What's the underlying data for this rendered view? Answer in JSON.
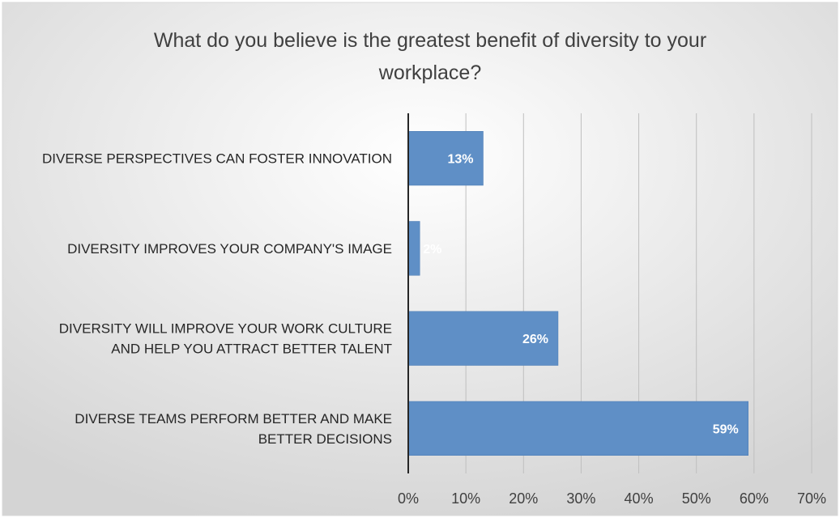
{
  "chart_data": {
    "type": "bar",
    "orientation": "horizontal",
    "title_lines": [
      "What do you believe is the greatest benefit of diversity to your",
      "workplace?"
    ],
    "categories": [
      [
        "DIVERSE PERSPECTIVES CAN FOSTER INNOVATION"
      ],
      [
        "DIVERSITY IMPROVES YOUR COMPANY'S IMAGE"
      ],
      [
        "DIVERSITY WILL IMPROVE YOUR WORK CULTURE",
        "AND HELP YOU ATTRACT BETTER TALENT"
      ],
      [
        "DIVERSE TEAMS PERFORM BETTER AND MAKE",
        "BETTER DECISIONS"
      ]
    ],
    "values": [
      13,
      2,
      26,
      59
    ],
    "value_labels": [
      "13%",
      "2%",
      "26%",
      "59%"
    ],
    "ticks": [
      0,
      10,
      20,
      30,
      40,
      50,
      60,
      70
    ],
    "tick_labels": [
      "0%",
      "10%",
      "20%",
      "30%",
      "40%",
      "50%",
      "60%",
      "70%"
    ],
    "xlim": [
      0,
      70
    ],
    "grid": "vertical",
    "legend": "none",
    "colors": {
      "bar": "#5f8fc6",
      "bar_stroke": "#4a7ab3",
      "grid": "#bfbfbf",
      "axis": "#262626",
      "background_light": "#ffffff",
      "background_dark": "#d4d4d4"
    }
  }
}
